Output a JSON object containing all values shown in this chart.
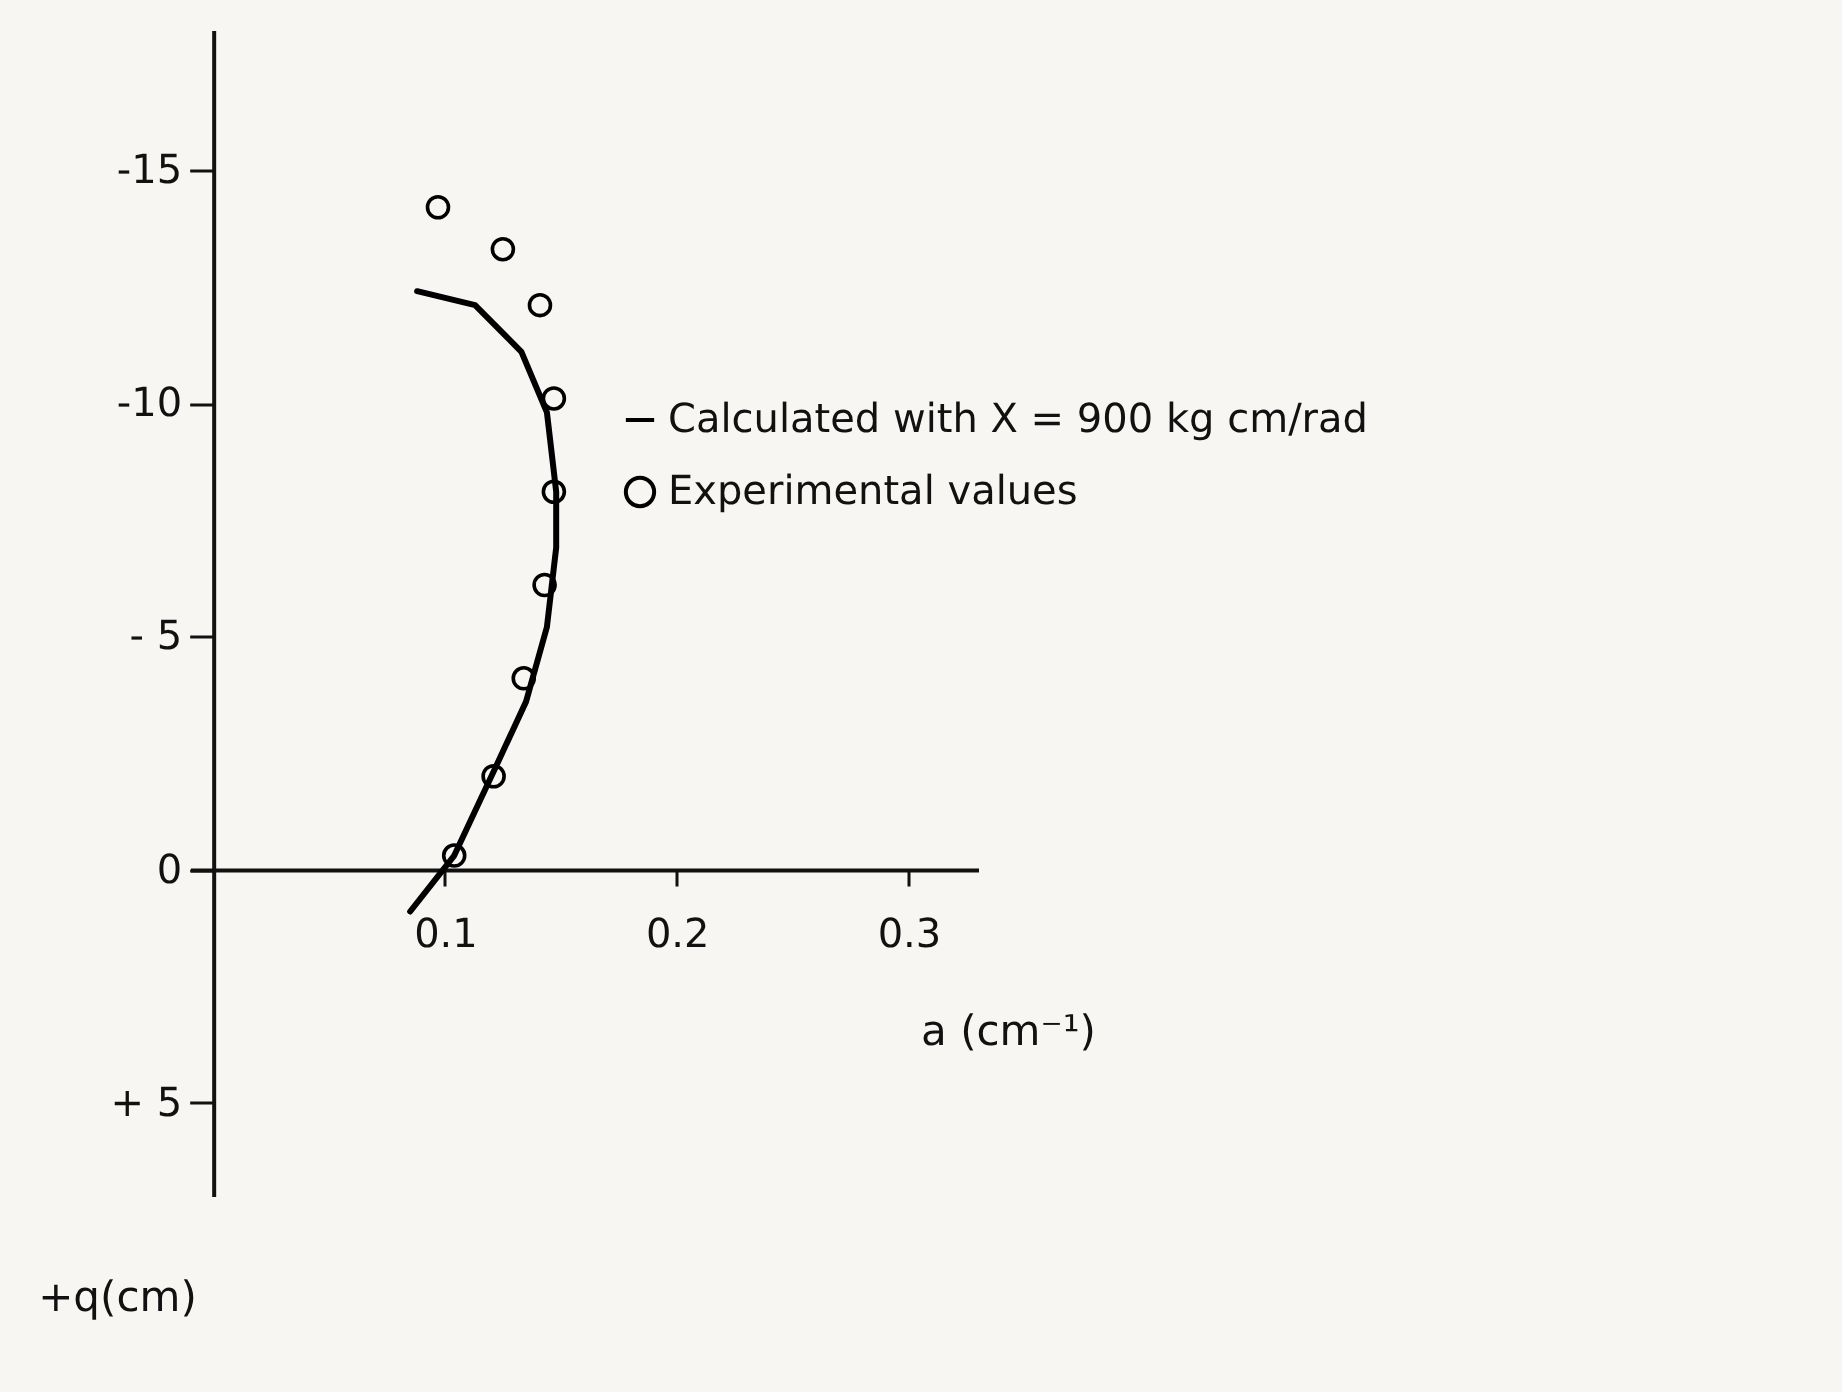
{
  "chart_data": {
    "type": "line",
    "xlabel": "a (cm⁻¹)",
    "ylabel": "+q(cm)",
    "xlim": [
      -0.01,
      0.33
    ],
    "ylim": [
      7,
      -18
    ],
    "xticks": [
      0.1,
      0.2,
      0.3
    ],
    "yticks": [
      -15,
      -10,
      {
        "value": -5,
        "label": "- 5"
      },
      0,
      {
        "value": 5,
        "label": "+ 5"
      }
    ],
    "grid": false,
    "legend": "right",
    "series": [
      {
        "name": "Calculated with Χ = 900 kg cm/rad",
        "type": "line",
        "color": "#000000",
        "marker": "none",
        "line_style": "solid",
        "x": [
          0.088,
          0.113,
          0.133,
          0.144,
          0.148,
          0.148,
          0.144,
          0.135,
          0.121,
          0.104,
          0.085
        ],
        "values": [
          -12.4,
          -12.1,
          -11.1,
          -9.8,
          -8.1,
          -6.9,
          -5.2,
          -3.6,
          -2.1,
          -0.3,
          0.9
        ]
      },
      {
        "name": "Experimental values",
        "type": "scatter",
        "color": "#000000",
        "marker": "circle",
        "x": [
          0.097,
          0.125,
          0.141,
          0.147,
          0.147,
          0.143,
          0.134,
          0.121,
          0.104
        ],
        "values": [
          -14.2,
          -13.3,
          -12.1,
          -10.1,
          -8.1,
          -6.1,
          -4.1,
          -2.0,
          -0.3
        ]
      }
    ]
  }
}
